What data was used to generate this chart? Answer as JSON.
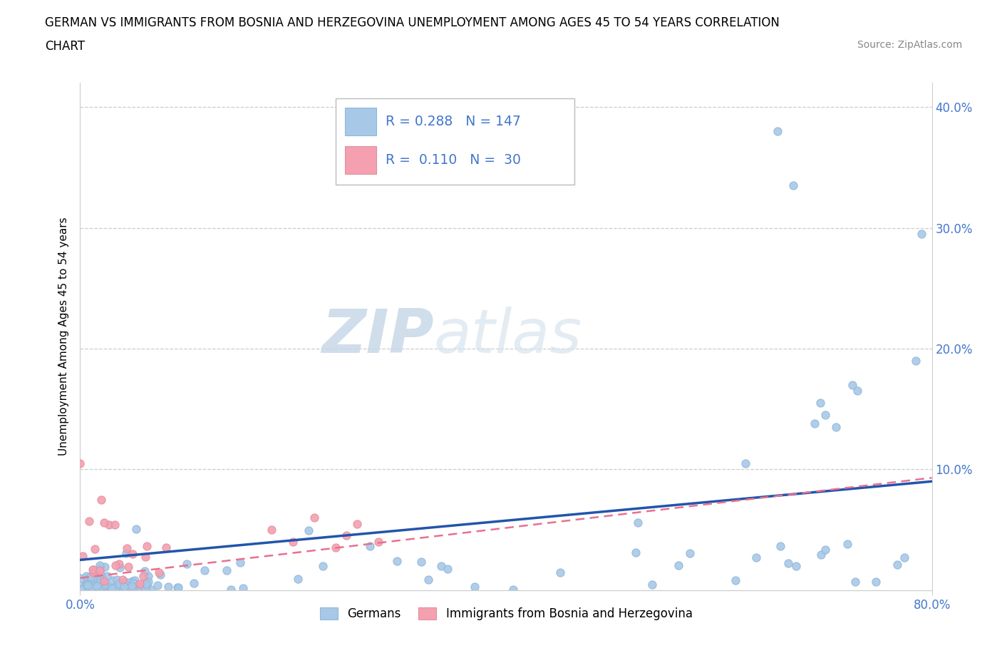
{
  "title_line1": "GERMAN VS IMMIGRANTS FROM BOSNIA AND HERZEGOVINA UNEMPLOYMENT AMONG AGES 45 TO 54 YEARS CORRELATION",
  "title_line2": "CHART",
  "source": "Source: ZipAtlas.com",
  "ylabel": "Unemployment Among Ages 45 to 54 years",
  "xmin": 0.0,
  "xmax": 0.8,
  "ymin": 0.0,
  "ymax": 0.42,
  "german_R": 0.288,
  "german_N": 147,
  "bosnian_R": 0.11,
  "bosnian_N": 30,
  "german_color": "#a8c8e8",
  "bosnian_color": "#f4a0b0",
  "german_line_color": "#2255aa",
  "bosnian_line_color": "#e87090",
  "watermark_ZIP": "ZIP",
  "watermark_atlas": "atlas",
  "tick_color": "#4477cc",
  "legend_label_german": "Germans",
  "legend_label_bosnian": "Immigrants from Bosnia and Herzegovina",
  "x_ticks": [
    0.0,
    0.8
  ],
  "x_tick_labels": [
    "0.0%",
    "80.0%"
  ],
  "y_ticks": [
    0.1,
    0.2,
    0.3,
    0.4
  ],
  "y_tick_labels": [
    "10.0%",
    "20.0%",
    "30.0%",
    "40.0%"
  ]
}
